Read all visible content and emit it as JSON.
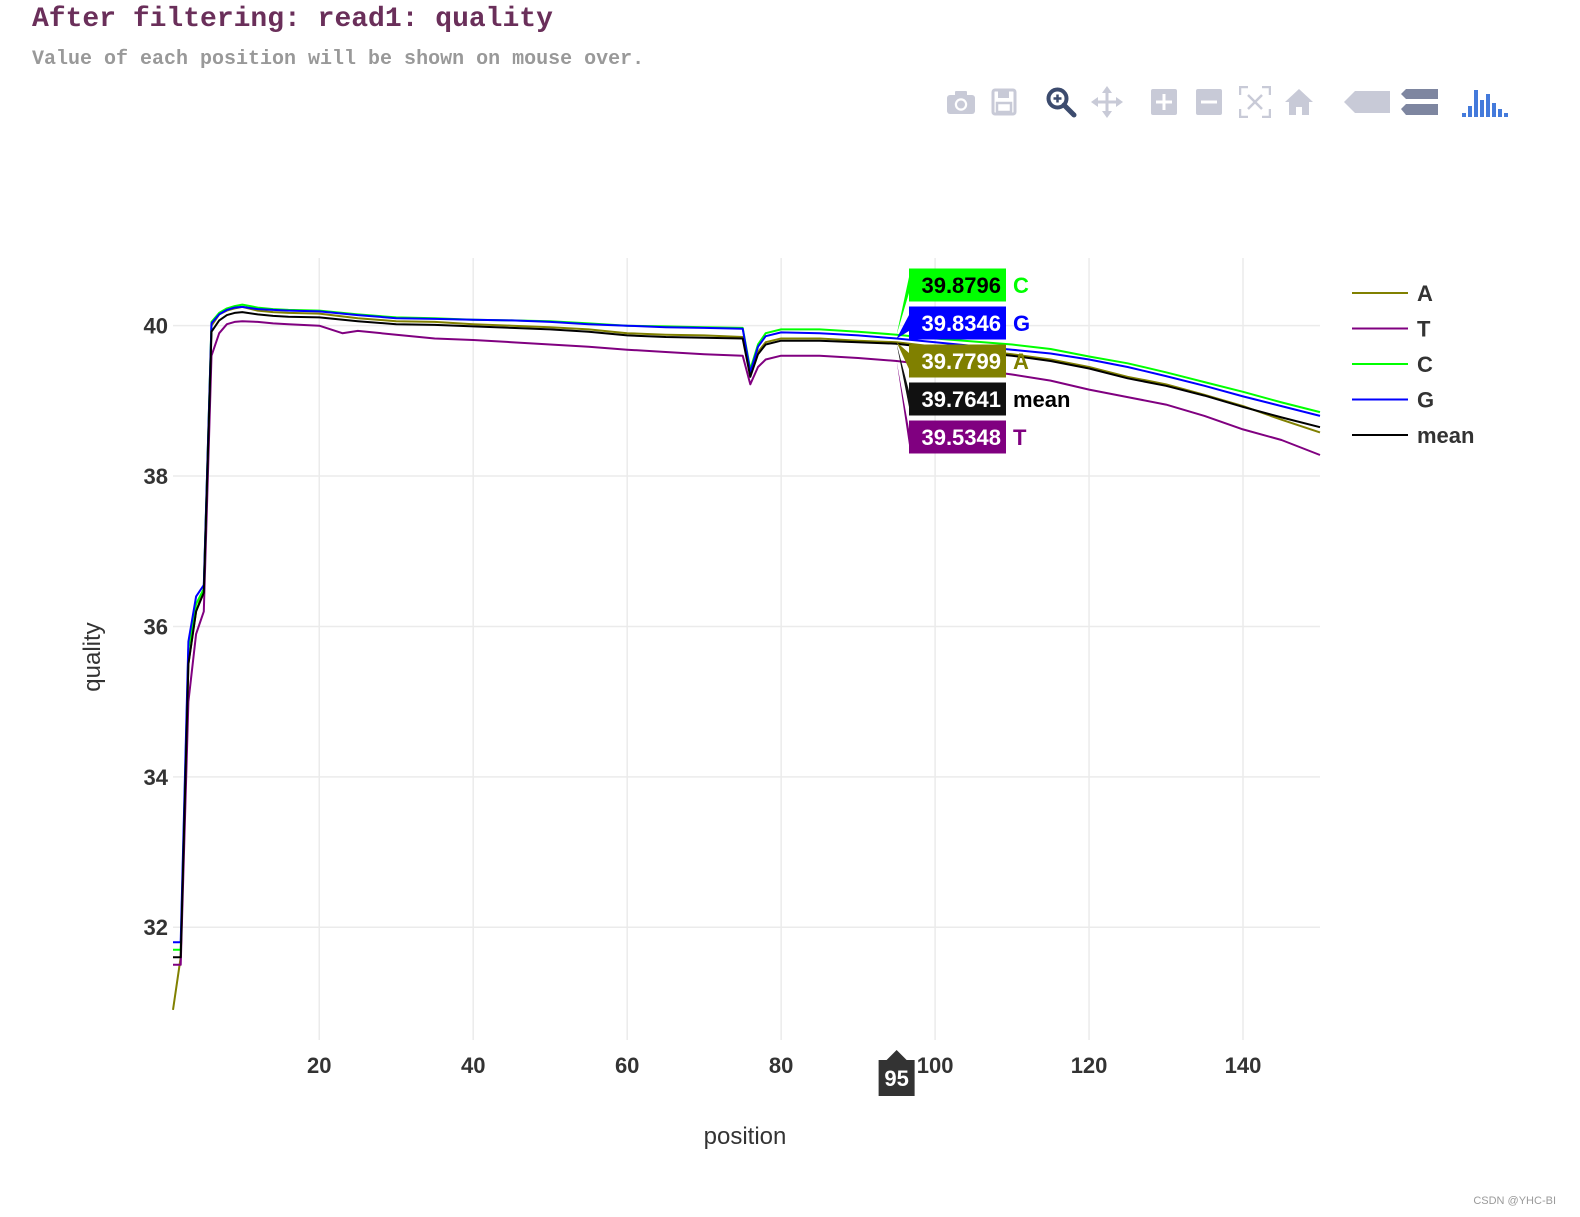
{
  "header": {
    "title": "After filtering: read1: quality",
    "subtitle": "Value of each position will be shown on mouse over."
  },
  "modebar": [
    {
      "name": "camera-icon",
      "label": "Download plot as a png"
    },
    {
      "name": "save-icon",
      "label": "Save and edit plot"
    },
    {
      "name": "zoom-icon",
      "label": "Zoom"
    },
    {
      "name": "pan-icon",
      "label": "Pan"
    },
    {
      "name": "zoom-in-icon",
      "label": "Zoom in"
    },
    {
      "name": "zoom-out-icon",
      "label": "Zoom out"
    },
    {
      "name": "autoscale-icon",
      "label": "Autoscale"
    },
    {
      "name": "home-icon",
      "label": "Reset axes"
    },
    {
      "name": "hover-closest-icon",
      "label": "Show closest data on hover"
    },
    {
      "name": "hover-compare-icon",
      "label": "Compare data on hover"
    },
    {
      "name": "plotly-logo-icon",
      "label": "Produced with Plotly"
    }
  ],
  "chart_data": {
    "type": "line",
    "title": "",
    "xlabel": "position",
    "ylabel": "quality",
    "xlim": [
      1,
      150
    ],
    "ylim": [
      30.5,
      40.9
    ],
    "xticks": [
      20,
      40,
      60,
      80,
      100,
      120,
      140
    ],
    "yticks": [
      32,
      34,
      36,
      38,
      40
    ],
    "grid": true,
    "legend_position": "top-right",
    "series": [
      {
        "name": "A",
        "color": "#808000",
        "points": [
          [
            1,
            30.9
          ],
          [
            2,
            31.6
          ],
          [
            3,
            35.5
          ],
          [
            4,
            36.2
          ],
          [
            5,
            36.5
          ],
          [
            6,
            40.0
          ],
          [
            7,
            40.15
          ],
          [
            8,
            40.2
          ],
          [
            9,
            40.23
          ],
          [
            10,
            40.25
          ],
          [
            12,
            40.2
          ],
          [
            14,
            40.18
          ],
          [
            16,
            40.17
          ],
          [
            20,
            40.16
          ],
          [
            25,
            40.1
          ],
          [
            30,
            40.06
          ],
          [
            35,
            40.05
          ],
          [
            40,
            40.02
          ],
          [
            45,
            40.0
          ],
          [
            50,
            39.98
          ],
          [
            55,
            39.95
          ],
          [
            60,
            39.9
          ],
          [
            65,
            39.88
          ],
          [
            70,
            39.87
          ],
          [
            75,
            39.85
          ],
          [
            76,
            39.35
          ],
          [
            77,
            39.65
          ],
          [
            78,
            39.78
          ],
          [
            80,
            39.83
          ],
          [
            85,
            39.83
          ],
          [
            90,
            39.8
          ],
          [
            95,
            39.78
          ],
          [
            100,
            39.72
          ],
          [
            105,
            39.68
          ],
          [
            110,
            39.62
          ],
          [
            115,
            39.55
          ],
          [
            120,
            39.45
          ],
          [
            125,
            39.32
          ],
          [
            130,
            39.22
          ],
          [
            135,
            39.08
          ],
          [
            140,
            38.93
          ],
          [
            145,
            38.75
          ],
          [
            150,
            38.58
          ]
        ]
      },
      {
        "name": "T",
        "color": "#800080",
        "points": [
          [
            1,
            31.5
          ],
          [
            2,
            31.5
          ],
          [
            3,
            35.0
          ],
          [
            4,
            35.9
          ],
          [
            5,
            36.2
          ],
          [
            6,
            39.6
          ],
          [
            7,
            39.9
          ],
          [
            8,
            40.02
          ],
          [
            9,
            40.05
          ],
          [
            10,
            40.06
          ],
          [
            12,
            40.05
          ],
          [
            14,
            40.03
          ],
          [
            16,
            40.02
          ],
          [
            20,
            40.0
          ],
          [
            23,
            39.9
          ],
          [
            25,
            39.93
          ],
          [
            30,
            39.88
          ],
          [
            35,
            39.83
          ],
          [
            40,
            39.81
          ],
          [
            45,
            39.78
          ],
          [
            50,
            39.75
          ],
          [
            55,
            39.72
          ],
          [
            60,
            39.68
          ],
          [
            65,
            39.65
          ],
          [
            70,
            39.62
          ],
          [
            75,
            39.6
          ],
          [
            76,
            39.22
          ],
          [
            77,
            39.45
          ],
          [
            78,
            39.55
          ],
          [
            80,
            39.6
          ],
          [
            85,
            39.6
          ],
          [
            90,
            39.57
          ],
          [
            95,
            39.53
          ],
          [
            100,
            39.47
          ],
          [
            105,
            39.42
          ],
          [
            110,
            39.35
          ],
          [
            115,
            39.27
          ],
          [
            120,
            39.15
          ],
          [
            125,
            39.05
          ],
          [
            130,
            38.95
          ],
          [
            135,
            38.8
          ],
          [
            140,
            38.62
          ],
          [
            145,
            38.48
          ],
          [
            150,
            38.28
          ]
        ]
      },
      {
        "name": "C",
        "color": "#00ff00",
        "points": [
          [
            1,
            31.7
          ],
          [
            2,
            31.7
          ],
          [
            3,
            35.7
          ],
          [
            4,
            36.3
          ],
          [
            5,
            36.5
          ],
          [
            6,
            40.05
          ],
          [
            7,
            40.17
          ],
          [
            8,
            40.23
          ],
          [
            9,
            40.26
          ],
          [
            10,
            40.28
          ],
          [
            12,
            40.24
          ],
          [
            14,
            40.22
          ],
          [
            16,
            40.21
          ],
          [
            20,
            40.2
          ],
          [
            25,
            40.15
          ],
          [
            30,
            40.11
          ],
          [
            35,
            40.1
          ],
          [
            40,
            40.08
          ],
          [
            45,
            40.07
          ],
          [
            50,
            40.06
          ],
          [
            55,
            40.03
          ],
          [
            60,
            40.0
          ],
          [
            65,
            39.99
          ],
          [
            70,
            39.98
          ],
          [
            75,
            39.97
          ],
          [
            76,
            39.42
          ],
          [
            77,
            39.75
          ],
          [
            78,
            39.9
          ],
          [
            80,
            39.95
          ],
          [
            85,
            39.95
          ],
          [
            90,
            39.92
          ],
          [
            95,
            39.88
          ],
          [
            100,
            39.83
          ],
          [
            105,
            39.79
          ],
          [
            110,
            39.75
          ],
          [
            115,
            39.69
          ],
          [
            120,
            39.59
          ],
          [
            125,
            39.5
          ],
          [
            130,
            39.38
          ],
          [
            135,
            39.25
          ],
          [
            140,
            39.12
          ],
          [
            145,
            38.98
          ],
          [
            150,
            38.85
          ]
        ]
      },
      {
        "name": "G",
        "color": "#0000ff",
        "points": [
          [
            1,
            31.8
          ],
          [
            2,
            31.8
          ],
          [
            3,
            35.8
          ],
          [
            4,
            36.4
          ],
          [
            5,
            36.55
          ],
          [
            6,
            40.03
          ],
          [
            7,
            40.15
          ],
          [
            8,
            40.21
          ],
          [
            9,
            40.24
          ],
          [
            10,
            40.25
          ],
          [
            12,
            40.22
          ],
          [
            14,
            40.21
          ],
          [
            16,
            40.2
          ],
          [
            20,
            40.19
          ],
          [
            25,
            40.14
          ],
          [
            30,
            40.1
          ],
          [
            35,
            40.09
          ],
          [
            40,
            40.08
          ],
          [
            45,
            40.07
          ],
          [
            50,
            40.05
          ],
          [
            55,
            40.02
          ],
          [
            60,
            40.0
          ],
          [
            65,
            39.98
          ],
          [
            70,
            39.97
          ],
          [
            75,
            39.96
          ],
          [
            76,
            39.38
          ],
          [
            77,
            39.72
          ],
          [
            78,
            39.86
          ],
          [
            80,
            39.91
          ],
          [
            85,
            39.9
          ],
          [
            90,
            39.87
          ],
          [
            95,
            39.83
          ],
          [
            100,
            39.78
          ],
          [
            105,
            39.73
          ],
          [
            110,
            39.68
          ],
          [
            115,
            39.63
          ],
          [
            120,
            39.55
          ],
          [
            125,
            39.45
          ],
          [
            130,
            39.33
          ],
          [
            135,
            39.2
          ],
          [
            140,
            39.06
          ],
          [
            145,
            38.93
          ],
          [
            150,
            38.8
          ]
        ]
      },
      {
        "name": "mean",
        "color": "#000000",
        "points": [
          [
            1,
            31.6
          ],
          [
            2,
            31.6
          ],
          [
            3,
            35.5
          ],
          [
            4,
            36.2
          ],
          [
            5,
            36.45
          ],
          [
            6,
            39.92
          ],
          [
            7,
            40.07
          ],
          [
            8,
            40.14
          ],
          [
            9,
            40.17
          ],
          [
            10,
            40.18
          ],
          [
            12,
            40.15
          ],
          [
            14,
            40.13
          ],
          [
            16,
            40.12
          ],
          [
            20,
            40.11
          ],
          [
            25,
            40.06
          ],
          [
            30,
            40.02
          ],
          [
            35,
            40.01
          ],
          [
            40,
            39.99
          ],
          [
            45,
            39.97
          ],
          [
            50,
            39.95
          ],
          [
            55,
            39.92
          ],
          [
            60,
            39.87
          ],
          [
            65,
            39.85
          ],
          [
            70,
            39.84
          ],
          [
            75,
            39.83
          ],
          [
            76,
            39.32
          ],
          [
            77,
            39.62
          ],
          [
            78,
            39.75
          ],
          [
            80,
            39.8
          ],
          [
            85,
            39.8
          ],
          [
            90,
            39.78
          ],
          [
            95,
            39.76
          ],
          [
            100,
            39.7
          ],
          [
            105,
            39.65
          ],
          [
            110,
            39.6
          ],
          [
            115,
            39.53
          ],
          [
            120,
            39.43
          ],
          [
            125,
            39.3
          ],
          [
            130,
            39.2
          ],
          [
            135,
            39.07
          ],
          [
            140,
            38.92
          ],
          [
            145,
            38.78
          ],
          [
            150,
            38.65
          ]
        ]
      }
    ],
    "hover": {
      "x": 95,
      "labels": [
        {
          "series": "C",
          "value": "39.8796",
          "bg": "#00ff00",
          "text_color": "#000000",
          "name_color": "#00ff00"
        },
        {
          "series": "G",
          "value": "39.8346",
          "bg": "#0000ff",
          "text_color": "#ffffff",
          "name_color": "#0000ff"
        },
        {
          "series": "A",
          "value": "39.7799",
          "bg": "#808000",
          "text_color": "#ffffff",
          "name_color": "#808000"
        },
        {
          "series": "mean",
          "value": "39.7641",
          "bg": "#111111",
          "text_color": "#ffffff",
          "name_color": "#000000"
        },
        {
          "series": "T",
          "value": "39.5348",
          "bg": "#800080",
          "text_color": "#ffffff",
          "name_color": "#800080"
        }
      ]
    }
  },
  "footer": {
    "watermark": "CSDN @YHC-BI"
  }
}
